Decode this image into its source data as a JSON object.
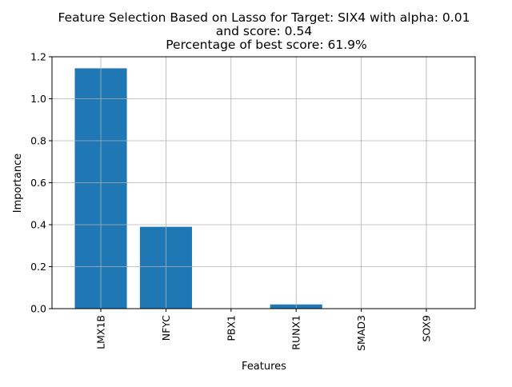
{
  "chart_data": {
    "type": "bar",
    "title_lines": [
      "Feature Selection Based on Lasso for Target: SIX4 with alpha: 0.01",
      "and score: 0.54",
      "Percentage of best score: 61.9%"
    ],
    "xlabel": "Features",
    "ylabel": "Importance",
    "categories": [
      "LMX1B",
      "NFYC",
      "PBX1",
      "RUNX1",
      "SMAD3",
      "SOX9"
    ],
    "values": [
      1.145,
      0.39,
      0.0,
      0.02,
      0.0,
      0.0
    ],
    "ylim": [
      0,
      1.2
    ],
    "yticks": [
      0.0,
      0.2,
      0.4,
      0.6,
      0.8,
      1.0,
      1.2
    ],
    "ytick_labels": [
      "0.0",
      "0.2",
      "0.4",
      "0.6",
      "0.8",
      "1.0",
      "1.2"
    ],
    "grid": true,
    "bar_color": "#1f77b4",
    "grid_color": "#b0b0b0"
  }
}
